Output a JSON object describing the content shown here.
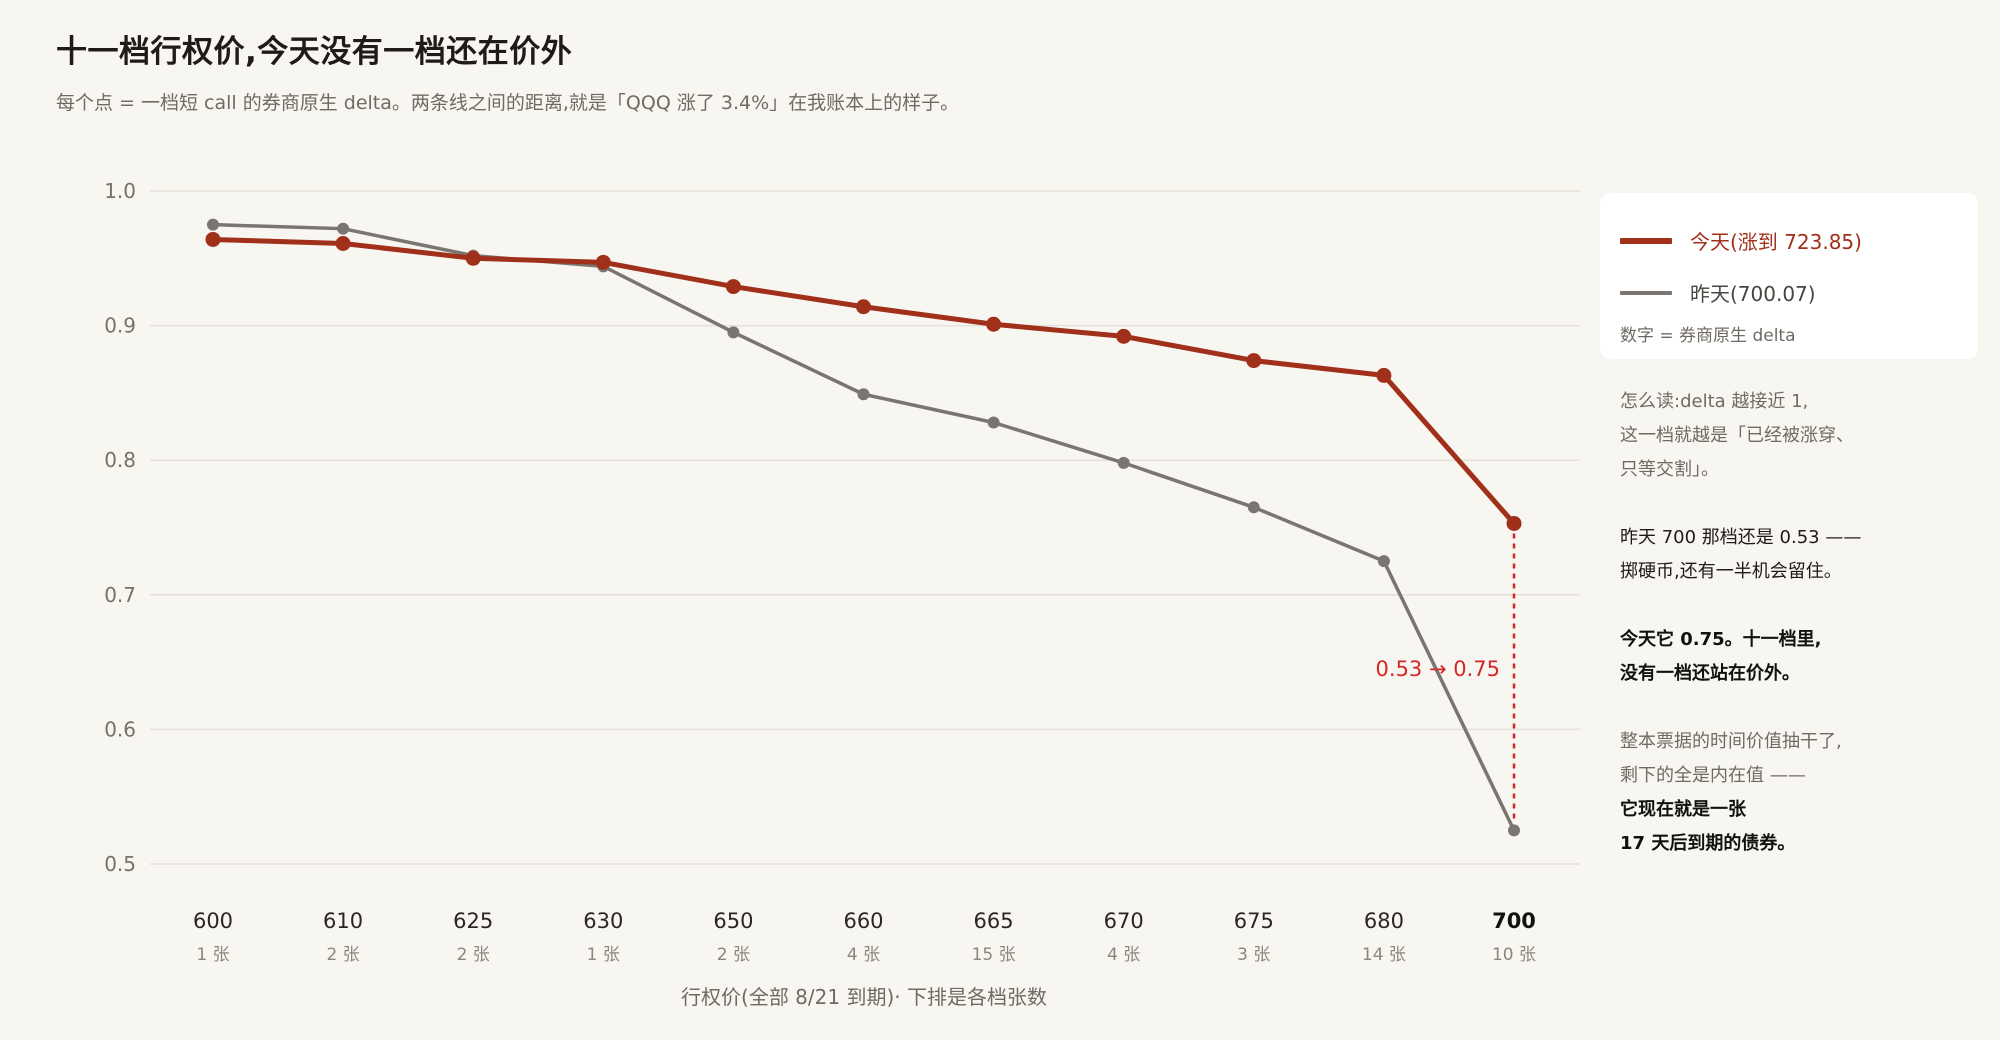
{
  "title": "十一档行权价,今天没有一档还在价外",
  "subtitle": "每个点 = 一档短 call 的券商原生 delta。两条线之间的距离,就是「QQQ 涨了 3.4%」在我账本上的样子。",
  "legend": {
    "today_label": "今天(涨到 723.85)",
    "yesterday_label": "昨天(700.07)",
    "note": "数字 = 券商原生 delta"
  },
  "colors": {
    "today": "#a0301a",
    "yesterday": "#7a7571",
    "annotation": "#d62728"
  },
  "notes": {
    "p1": [
      "怎么读:delta 越接近 1,",
      "这一档就越是「已经被涨穿、",
      "只等交割」。"
    ],
    "p2": [
      "昨天 700 那档还是 0.53 ——",
      "掷硬币,还有一半机会留住。"
    ],
    "p3": [
      "今天它 0.75。十一档里,",
      "没有一档还站在价外。"
    ],
    "p4": [
      "整本票据的时间价值抽干了,",
      "剩下的全是内在值 ——",
      "它现在就是一张",
      "17 天后到期的债券。"
    ]
  },
  "chart_data": {
    "type": "line",
    "categories": [
      "600",
      "610",
      "625",
      "630",
      "650",
      "660",
      "665",
      "670",
      "675",
      "680",
      "700"
    ],
    "category_counts": [
      "1 张",
      "2 张",
      "2 张",
      "1 张",
      "2 张",
      "4 张",
      "15 张",
      "4 张",
      "3 张",
      "14 张",
      "10 张"
    ],
    "highlight_category": "700",
    "series": [
      {
        "name": "今天(涨到 723.85)",
        "values": [
          0.964,
          0.961,
          0.95,
          0.947,
          0.929,
          0.914,
          0.901,
          0.892,
          0.874,
          0.863,
          0.753
        ]
      },
      {
        "name": "昨天(700.07)",
        "values": [
          0.975,
          0.972,
          0.952,
          0.944,
          0.895,
          0.849,
          0.828,
          0.798,
          0.765,
          0.725,
          0.525
        ]
      }
    ],
    "ylim": [
      0.5,
      1.0
    ],
    "yticks": [
      "1.0",
      "0.9",
      "0.8",
      "0.7",
      "0.6",
      "0.5"
    ],
    "xlabel": "行权价(全部 8/21 到期)· 下排是各档张数",
    "ylabel": "",
    "annotation": "0.53 → 0.75",
    "grid": true,
    "legend_position": "right"
  }
}
